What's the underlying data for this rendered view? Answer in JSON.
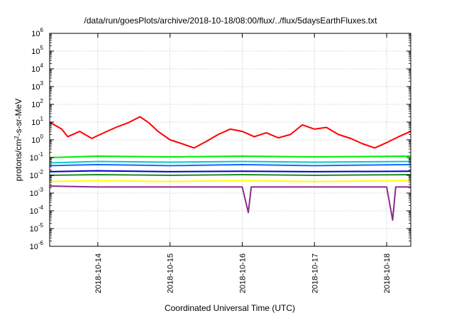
{
  "chart_data": {
    "type": "line",
    "title": "/data/run/goesPlots/archive/2018-10-18/08:00/flux/../flux/5daysEarthFluxes.txt",
    "xlabel": "Coordinated Universal Time (UTC)",
    "ylabel": {
      "prefix": "protons/cm",
      "superscript": "2",
      "suffix": "-s-sr-MeV"
    },
    "y_scale": "log",
    "ylim_exponents": [
      -6,
      6
    ],
    "y_tick_labels": [
      {
        "base": "10",
        "exp": "-6"
      },
      {
        "base": "10",
        "exp": "-5"
      },
      {
        "base": "10",
        "exp": "-4"
      },
      {
        "base": "10",
        "exp": "-3"
      },
      {
        "base": "10",
        "exp": "-2"
      },
      {
        "base": "10",
        "exp": "-1"
      },
      {
        "base": "10",
        "exp": "0"
      },
      {
        "base": "10",
        "exp": "1"
      },
      {
        "base": "10",
        "exp": "2"
      },
      {
        "base": "10",
        "exp": "3"
      },
      {
        "base": "10",
        "exp": "4"
      },
      {
        "base": "10",
        "exp": "5"
      },
      {
        "base": "10",
        "exp": "6"
      }
    ],
    "xlim": [
      "2018-10-13T08:00",
      "2018-10-18T08:00"
    ],
    "x_ticks": [
      {
        "time": "2018-10-14T00:00",
        "label": "2018-10-14"
      },
      {
        "time": "2018-10-15T00:00",
        "label": "2018-10-15"
      },
      {
        "time": "2018-10-16T00:00",
        "label": "2018-10-16"
      },
      {
        "time": "2018-10-17T00:00",
        "label": "2018-10-17"
      },
      {
        "time": "2018-10-18T00:00",
        "label": "2018-10-18"
      }
    ],
    "grid": true,
    "legend": "none",
    "series": [
      {
        "color": "#ff0000",
        "values": [
          {
            "t": "2018-10-13T08:00",
            "y": 10
          },
          {
            "t": "2018-10-13T12:00",
            "y": 4
          },
          {
            "t": "2018-10-13T14:00",
            "y": 1.5
          },
          {
            "t": "2018-10-13T18:00",
            "y": 3
          },
          {
            "t": "2018-10-13T22:00",
            "y": 1.2
          },
          {
            "t": "2018-10-14T02:00",
            "y": 2.5
          },
          {
            "t": "2018-10-14T06:00",
            "y": 5
          },
          {
            "t": "2018-10-14T10:00",
            "y": 9
          },
          {
            "t": "2018-10-14T14:00",
            "y": 20
          },
          {
            "t": "2018-10-14T17:00",
            "y": 9
          },
          {
            "t": "2018-10-14T20:00",
            "y": 3
          },
          {
            "t": "2018-10-15T00:00",
            "y": 1
          },
          {
            "t": "2018-10-15T04:00",
            "y": 0.6
          },
          {
            "t": "2018-10-15T08:00",
            "y": 0.35
          },
          {
            "t": "2018-10-15T12:00",
            "y": 0.8
          },
          {
            "t": "2018-10-15T16:00",
            "y": 2
          },
          {
            "t": "2018-10-15T20:00",
            "y": 4
          },
          {
            "t": "2018-10-16T00:00",
            "y": 3
          },
          {
            "t": "2018-10-16T04:00",
            "y": 1.5
          },
          {
            "t": "2018-10-16T08:00",
            "y": 2.5
          },
          {
            "t": "2018-10-16T12:00",
            "y": 1.3
          },
          {
            "t": "2018-10-16T16:00",
            "y": 2
          },
          {
            "t": "2018-10-16T20:00",
            "y": 7
          },
          {
            "t": "2018-10-17T00:00",
            "y": 4
          },
          {
            "t": "2018-10-17T04:00",
            "y": 5
          },
          {
            "t": "2018-10-17T08:00",
            "y": 2
          },
          {
            "t": "2018-10-17T12:00",
            "y": 1.2
          },
          {
            "t": "2018-10-17T16:00",
            "y": 0.6
          },
          {
            "t": "2018-10-17T20:00",
            "y": 0.35
          },
          {
            "t": "2018-10-18T00:00",
            "y": 0.7
          },
          {
            "t": "2018-10-18T04:00",
            "y": 1.5
          },
          {
            "t": "2018-10-18T08:00",
            "y": 3
          }
        ]
      },
      {
        "color": "#00ee00",
        "values": [
          {
            "t": "2018-10-13T08:00",
            "y": 0.1
          },
          {
            "t": "2018-10-14T00:00",
            "y": 0.12
          },
          {
            "t": "2018-10-15T00:00",
            "y": 0.11
          },
          {
            "t": "2018-10-16T00:00",
            "y": 0.12
          },
          {
            "t": "2018-10-17T00:00",
            "y": 0.11
          },
          {
            "t": "2018-10-18T08:00",
            "y": 0.12
          }
        ]
      },
      {
        "color": "#00cccc",
        "values": [
          {
            "t": "2018-10-13T08:00",
            "y": 0.05
          },
          {
            "t": "2018-10-14T00:00",
            "y": 0.06
          },
          {
            "t": "2018-10-15T00:00",
            "y": 0.055
          },
          {
            "t": "2018-10-16T00:00",
            "y": 0.06
          },
          {
            "t": "2018-10-17T00:00",
            "y": 0.055
          },
          {
            "t": "2018-10-18T08:00",
            "y": 0.06
          }
        ]
      },
      {
        "color": "#1a66ff",
        "values": [
          {
            "t": "2018-10-13T08:00",
            "y": 0.035
          },
          {
            "t": "2018-10-14T00:00",
            "y": 0.04
          },
          {
            "t": "2018-10-15T00:00",
            "y": 0.035
          },
          {
            "t": "2018-10-16T00:00",
            "y": 0.04
          },
          {
            "t": "2018-10-17T00:00",
            "y": 0.035
          },
          {
            "t": "2018-10-18T08:00",
            "y": 0.04
          }
        ]
      },
      {
        "color": "#0000cc",
        "values": [
          {
            "t": "2018-10-13T08:00",
            "y": 0.016
          },
          {
            "t": "2018-10-14T00:00",
            "y": 0.018
          },
          {
            "t": "2018-10-15T00:00",
            "y": 0.016
          },
          {
            "t": "2018-10-16T00:00",
            "y": 0.017
          },
          {
            "t": "2018-10-17T00:00",
            "y": 0.016
          },
          {
            "t": "2018-10-18T08:00",
            "y": 0.017
          }
        ]
      },
      {
        "color": "#228b22",
        "values": [
          {
            "t": "2018-10-13T08:00",
            "y": 0.01
          },
          {
            "t": "2018-10-14T00:00",
            "y": 0.011
          },
          {
            "t": "2018-10-15T00:00",
            "y": 0.01
          },
          {
            "t": "2018-10-16T00:00",
            "y": 0.011
          },
          {
            "t": "2018-10-17T00:00",
            "y": 0.01
          },
          {
            "t": "2018-10-18T08:00",
            "y": 0.011
          }
        ]
      },
      {
        "color": "#ffff00",
        "values": [
          {
            "t": "2018-10-13T08:00",
            "y": 0.0045
          },
          {
            "t": "2018-10-14T00:00",
            "y": 0.005
          },
          {
            "t": "2018-10-15T00:00",
            "y": 0.0045
          },
          {
            "t": "2018-10-16T00:00",
            "y": 0.005
          },
          {
            "t": "2018-10-17T00:00",
            "y": 0.0045
          },
          {
            "t": "2018-10-18T08:00",
            "y": 0.005
          }
        ]
      },
      {
        "color": "#8b2b8b",
        "values": [
          {
            "t": "2018-10-13T08:00",
            "y": 0.0025
          },
          {
            "t": "2018-10-14T00:00",
            "y": 0.0022
          },
          {
            "t": "2018-10-15T00:00",
            "y": 0.0022
          },
          {
            "t": "2018-10-16T00:00",
            "y": 0.0022
          },
          {
            "t": "2018-10-16T02:00",
            "y": 8e-05
          },
          {
            "t": "2018-10-16T03:00",
            "y": 0.0022
          },
          {
            "t": "2018-10-17T00:00",
            "y": 0.0022
          },
          {
            "t": "2018-10-18T00:00",
            "y": 0.0022
          },
          {
            "t": "2018-10-18T02:00",
            "y": 3e-05
          },
          {
            "t": "2018-10-18T03:00",
            "y": 0.0022
          },
          {
            "t": "2018-10-18T08:00",
            "y": 0.0022
          }
        ]
      }
    ]
  }
}
